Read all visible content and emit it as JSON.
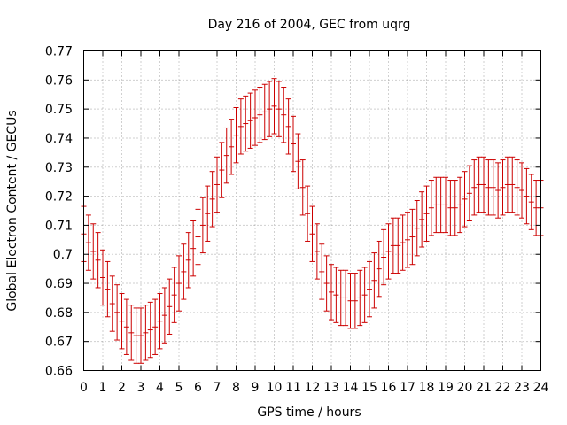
{
  "chart_data": {
    "type": "scatter",
    "title": "Day 216 of 2004, GEC from uqrg",
    "xlabel": "GPS time / hours",
    "ylabel": "Global Electron Content / GECUs",
    "xlim": [
      0,
      24
    ],
    "ylim": [
      0.66,
      0.77
    ],
    "xticks": [
      "0",
      "1",
      "2",
      "3",
      "4",
      "5",
      "6",
      "7",
      "8",
      "9",
      "10",
      "11",
      "12",
      "13",
      "14",
      "15",
      "16",
      "17",
      "18",
      "19",
      "20",
      "21",
      "22",
      "23",
      "24"
    ],
    "yticks": [
      "0.66",
      "0.67",
      "0.68",
      "0.69",
      "0.7",
      "0.71",
      "0.72",
      "0.73",
      "0.74",
      "0.75",
      "0.76",
      "0.77"
    ],
    "grid": true,
    "series_color": "#cc0000",
    "error": 0.0095,
    "series": [
      {
        "name": "GEC",
        "x": [
          0,
          0.25,
          0.5,
          0.75,
          1,
          1.25,
          1.5,
          1.75,
          2,
          2.25,
          2.5,
          2.75,
          3,
          3.25,
          3.5,
          3.75,
          4,
          4.25,
          4.5,
          4.75,
          5,
          5.25,
          5.5,
          5.75,
          6,
          6.25,
          6.5,
          6.75,
          7,
          7.25,
          7.5,
          7.75,
          8,
          8.25,
          8.5,
          8.75,
          9,
          9.25,
          9.5,
          9.75,
          10,
          10.25,
          10.5,
          10.75,
          11,
          11.25,
          11.5,
          11.75,
          12,
          12.25,
          12.5,
          12.75,
          13,
          13.25,
          13.5,
          13.75,
          14,
          14.25,
          14.5,
          14.75,
          15,
          15.25,
          15.5,
          15.75,
          16,
          16.25,
          16.5,
          16.75,
          17,
          17.25,
          17.5,
          17.75,
          18,
          18.25,
          18.5,
          18.75,
          19,
          19.25,
          19.5,
          19.75,
          20,
          20.25,
          20.5,
          20.75,
          21,
          21.25,
          21.5,
          21.75,
          22,
          22.25,
          22.5,
          22.75,
          23,
          23.25,
          23.5,
          23.75,
          24
        ],
        "y": [
          0.707,
          0.704,
          0.701,
          0.698,
          0.692,
          0.688,
          0.683,
          0.68,
          0.677,
          0.675,
          0.673,
          0.672,
          0.672,
          0.673,
          0.674,
          0.675,
          0.677,
          0.679,
          0.682,
          0.686,
          0.69,
          0.694,
          0.698,
          0.702,
          0.706,
          0.71,
          0.714,
          0.719,
          0.724,
          0.729,
          0.734,
          0.737,
          0.741,
          0.744,
          0.745,
          0.746,
          0.747,
          0.748,
          0.749,
          0.75,
          0.751,
          0.75,
          0.748,
          0.744,
          0.738,
          0.732,
          0.723,
          0.714,
          0.707,
          0.701,
          0.694,
          0.69,
          0.687,
          0.686,
          0.685,
          0.685,
          0.684,
          0.684,
          0.685,
          0.686,
          0.688,
          0.691,
          0.695,
          0.699,
          0.701,
          0.703,
          0.703,
          0.704,
          0.705,
          0.706,
          0.709,
          0.712,
          0.714,
          0.716,
          0.717,
          0.717,
          0.717,
          0.716,
          0.716,
          0.717,
          0.719,
          0.721,
          0.723,
          0.724,
          0.724,
          0.723,
          0.723,
          0.722,
          0.723,
          0.724,
          0.724,
          0.723,
          0.722,
          0.72,
          0.718,
          0.716,
          0.716
        ]
      }
    ]
  }
}
